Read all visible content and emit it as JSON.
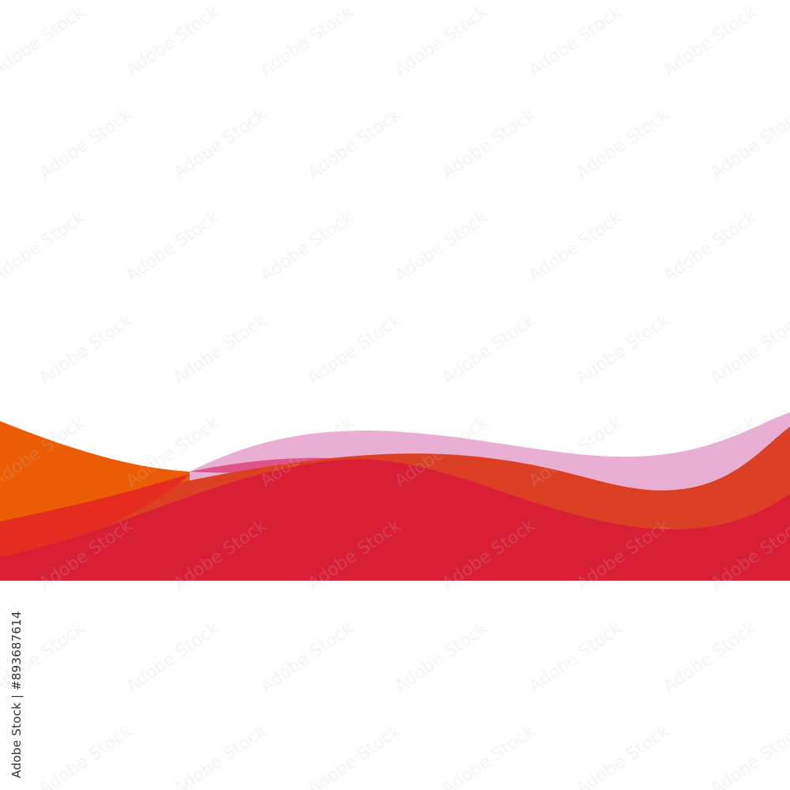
{
  "watermark": "Adobe Stock",
  "stock_label": "Adobe Stock | #893687614",
  "colors": {
    "background": "#ffffff",
    "orange": "#eb5c05",
    "pink": "#e8afd3",
    "orange_red": "#db4024",
    "red": "#d81f36",
    "overlap_red": "#e42d20"
  }
}
